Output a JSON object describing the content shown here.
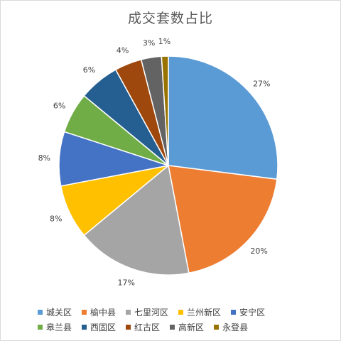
{
  "chart_data": {
    "type": "pie",
    "title": "成交套数占比",
    "categories": [
      "城关区",
      "榆中县",
      "七里河区",
      "兰州新区",
      "安宁区",
      "皋兰县",
      "西固区",
      "红古区",
      "高新区",
      "永登县"
    ],
    "values": [
      27,
      20,
      17,
      8,
      8,
      6,
      6,
      4,
      3,
      1
    ],
    "labels": [
      "27%",
      "20%",
      "17%",
      "8%",
      "8%",
      "6%",
      "6%",
      "4%",
      "3%",
      "1%"
    ],
    "colors": [
      "#5B9BD5",
      "#ED7D31",
      "#A5A5A5",
      "#FFC000",
      "#4472C4",
      "#70AD47",
      "#255E91",
      "#9E480E",
      "#636363",
      "#997300"
    ],
    "legend_position": "bottom",
    "start_angle": "12 o'clock",
    "direction": "clockwise"
  }
}
